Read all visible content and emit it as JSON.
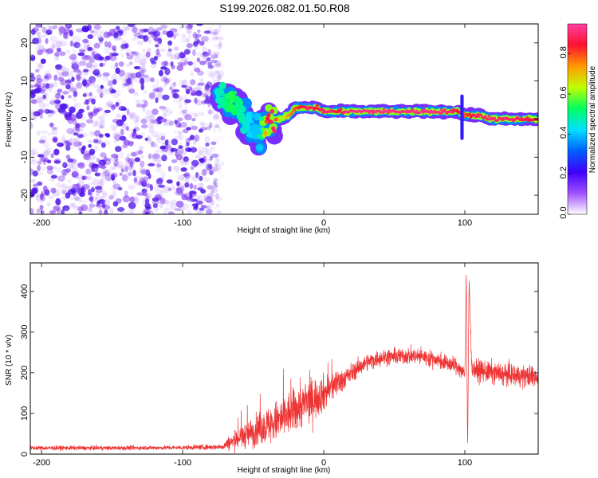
{
  "title": "S199.2026.082.01.50.R08",
  "colors": {
    "snr_line": "#ee3333",
    "spectrogram_noise": "#8a3ff0",
    "colormap": [
      "#ffffff",
      "#a050ff",
      "#4000ff",
      "#0060ff",
      "#00e0ff",
      "#00ff60",
      "#c0ff00",
      "#ff9900",
      "#ff1030",
      "#ff40a0"
    ]
  },
  "chart_data": [
    {
      "type": "heatmap",
      "title": "",
      "xlabel": "Height of straight line (km)",
      "ylabel": "Frequency (Hz)",
      "xlim": [
        -208,
        152
      ],
      "ylim": [
        -25,
        25
      ],
      "xticks": [
        -200,
        -100,
        0,
        100
      ],
      "yticks": [
        -20,
        -10,
        0,
        10,
        20
      ],
      "colorbar": {
        "label": "Normalized spectral amplitude",
        "range": [
          0,
          0.95
        ],
        "ticks": [
          0.0,
          0.2,
          0.4,
          0.6,
          0.8
        ]
      },
      "noise_region": {
        "x_from": -208,
        "x_to": -72,
        "freq_from": -25,
        "freq_to": 25
      },
      "signal_track": {
        "x": [
          -75,
          -70,
          -65,
          -60,
          -55,
          -50,
          -45,
          -40,
          -35,
          -30,
          -25,
          -20,
          -15,
          -10,
          -5,
          0,
          5,
          10,
          15,
          20,
          30,
          40,
          50,
          60,
          70,
          80,
          90,
          95,
          100,
          105,
          110,
          120,
          130,
          140,
          152
        ],
        "freq": [
          6,
          5,
          4,
          2,
          -1,
          -3,
          -3,
          0,
          0,
          0,
          1,
          3,
          3,
          3,
          3,
          2,
          2,
          2,
          2,
          2,
          2,
          2,
          2,
          2,
          2,
          2,
          2,
          2,
          1,
          1,
          1,
          0,
          0,
          0,
          0
        ],
        "amplitude": [
          0.45,
          0.5,
          0.55,
          0.5,
          0.45,
          0.4,
          0.4,
          0.85,
          0.9,
          0.6,
          0.75,
          0.8,
          0.85,
          0.9,
          0.85,
          0.9,
          0.9,
          0.85,
          0.9,
          0.92,
          0.92,
          0.92,
          0.92,
          0.92,
          0.92,
          0.92,
          0.9,
          0.85,
          0.8,
          0.85,
          0.9,
          0.9,
          0.9,
          0.88,
          0.85
        ]
      }
    },
    {
      "type": "line",
      "title": "",
      "xlabel": "Height of straight line (km)",
      "ylabel": "SNR (10 * v/v)",
      "xlim": [
        -208,
        152
      ],
      "ylim": [
        0,
        470
      ],
      "xticks": [
        -200,
        -100,
        0,
        100
      ],
      "yticks": [
        0,
        100,
        200,
        300,
        400
      ],
      "series": [
        {
          "name": "SNR",
          "x": [
            -208,
            -150,
            -100,
            -72,
            -65,
            -60,
            -50,
            -40,
            -30,
            -20,
            -10,
            0,
            10,
            20,
            30,
            40,
            50,
            60,
            70,
            80,
            90,
            95,
            100,
            101,
            102,
            103,
            105,
            110,
            120,
            130,
            140,
            152
          ],
          "mean": [
            15,
            15,
            16,
            18,
            30,
            40,
            55,
            70,
            85,
            110,
            130,
            150,
            175,
            200,
            225,
            237,
            240,
            242,
            240,
            232,
            220,
            215,
            195,
            440,
            10,
            430,
            210,
            205,
            200,
            195,
            192,
            190
          ],
          "noise": [
            6,
            6,
            6,
            8,
            25,
            30,
            40,
            50,
            60,
            60,
            60,
            50,
            35,
            25,
            22,
            22,
            22,
            22,
            22,
            22,
            22,
            22,
            25,
            0,
            0,
            0,
            25,
            30,
            30,
            30,
            30,
            30
          ]
        }
      ]
    }
  ]
}
